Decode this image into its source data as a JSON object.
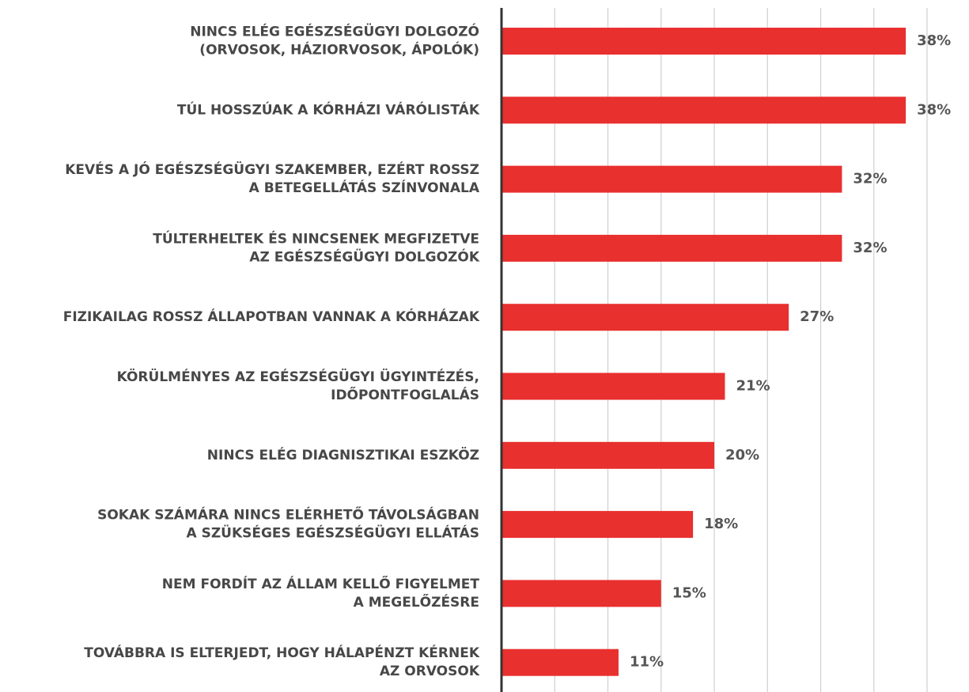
{
  "chart_data": {
    "type": "barh",
    "categories": [
      [
        "NINCS ELÉG EGÉSZSÉGÜGYI DOLGOZÓ",
        "(ORVOSOK, HÁZIORVOSOK, ÁPOLÓK)"
      ],
      [
        "TÚL HOSSZÚAK A KÓRHÁZI VÁRÓLISTÁK"
      ],
      [
        "KEVÉS A JÓ EGÉSZSÉGÜGYI SZAKEMBER, EZÉRT ROSSZ",
        "A BETEGELLÁTÁS SZÍNVONALA"
      ],
      [
        "TÚLTERHELTEK ÉS NINCSENEK MEGFIZETVE",
        "AZ EGÉSZSÉGÜGYI DOLGOZÓK"
      ],
      [
        "FIZIKAILAG ROSSZ ÁLLAPOTBAN VANNAK A KÓRHÁZAK"
      ],
      [
        "KÖRÜLMÉNYES AZ EGÉSZSÉGÜGYI ÜGYINTÉZÉS,",
        "IDŐPONTFOGLALÁS"
      ],
      [
        "NINCS ELÉG DIAGNISZTIKAI ESZKÖZ"
      ],
      [
        "SOKAK SZÁMÁRA NINCS ELÉRHETŐ TÁVOLSÁGBAN",
        "A SZÜKSÉGES EGÉSZSÉGÜGYI ELLÁTÁS"
      ],
      [
        "NEM FORDÍT AZ ÁLLAM KELLŐ FIGYELMET",
        "A MEGELŐZÉSRE"
      ],
      [
        "TOVÁBBRA IS ELTERJEDT, HOGY HÁLAPÉNZT KÉRNEK",
        "AZ ORVOSOK"
      ]
    ],
    "values": [
      38,
      38,
      32,
      32,
      27,
      21,
      20,
      18,
      15,
      11
    ],
    "value_labels": [
      "38%",
      "38%",
      "32%",
      "32%",
      "27%",
      "21%",
      "20%",
      "18%",
      "15%",
      "11%"
    ],
    "color": "#e8302f",
    "xlim": [
      0,
      40
    ],
    "xticks": [
      0,
      5,
      10,
      15,
      20,
      25,
      30,
      35,
      40
    ],
    "grid": true
  }
}
